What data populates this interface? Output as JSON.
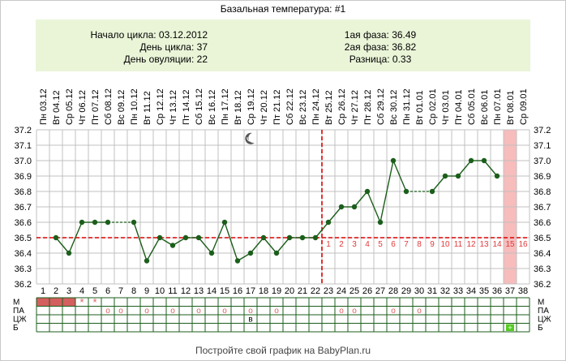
{
  "title": "Базальная температура: #1",
  "info": {
    "cycle_start": "Начало цикла: 03.12.2012",
    "cycle_day": "День цикла: 37",
    "ovulation_day": "День овуляции: 22",
    "phase1": "1ая фаза: 36.49",
    "phase2": "2ая фаза: 36.82",
    "difference": "Разница: 0.33"
  },
  "footer": "Постройте свой график на BabyPlan.ru",
  "colors": {
    "line": "#1b5e1b",
    "coverline": "#dd0000",
    "period": "#d45f5f",
    "today": "#f7bcbc",
    "grid": "#c0c0c0",
    "info_bg": "#eaf5d8",
    "luteal_text": "#e03b3b",
    "marker": "#e06060",
    "positive": "#55cc22"
  },
  "chart_data": {
    "type": "line",
    "title": "Базальная температура: #1",
    "xlabel": "",
    "ylabel": "",
    "ylim": [
      36.2,
      37.2
    ],
    "yticks": [
      "36.2",
      "36.3",
      "36.4",
      "36.5",
      "36.6",
      "36.7",
      "36.8",
      "36.9",
      "37.0",
      "37.1",
      "37.2"
    ],
    "days": [
      "1",
      "2",
      "3",
      "4",
      "5",
      "6",
      "7",
      "8",
      "9",
      "10",
      "11",
      "12",
      "13",
      "14",
      "15",
      "16",
      "17",
      "18",
      "19",
      "20",
      "21",
      "22",
      "23",
      "24",
      "25",
      "26",
      "27",
      "28",
      "29",
      "30",
      "31",
      "32",
      "33",
      "34",
      "35",
      "36",
      "37",
      "38"
    ],
    "dates": [
      "Пн 03.12",
      "Вт 04.12",
      "Ср 05.12",
      "Чт 06.12",
      "Пт 07.12",
      "Сб 08.12",
      "Вс 09.12",
      "Пн 10.12",
      "Вт 11.12",
      "Ср 12.12",
      "Чт 13.12",
      "Пт 14.12",
      "Сб 15.12",
      "Вс 16.12",
      "Пн 17.12",
      "Вт 18.12",
      "Ср 19.12",
      "Чт 20.12",
      "Пт 21.12",
      "Сб 22.12",
      "Вс 23.12",
      "Пн 24.12",
      "Вт 25.12",
      "Ср 26.12",
      "Чт 27.12",
      "Пт 28.12",
      "Сб 29.12",
      "Вс 30.12",
      "Пн 31.12",
      "Вт 01.01",
      "Ср 02.01",
      "Чт 03.01",
      "Пт 04.01",
      "Сб 05.01",
      "Вс 06.01",
      "Пн 07.01",
      "Вт 08.01",
      "Ср 09.01"
    ],
    "values": [
      null,
      36.5,
      36.4,
      36.6,
      36.6,
      36.6,
      null,
      36.6,
      36.35,
      36.5,
      36.45,
      36.5,
      36.5,
      36.4,
      36.6,
      36.35,
      36.4,
      36.5,
      36.4,
      36.5,
      36.5,
      36.5,
      36.6,
      36.7,
      36.7,
      36.8,
      36.6,
      37.0,
      36.8,
      null,
      36.8,
      36.9,
      36.9,
      37.0,
      37.0,
      36.9,
      null,
      null
    ],
    "coverline": 36.5,
    "ovulation_day": 22,
    "today_day": 37,
    "luteal_labels": [
      "1",
      "2",
      "3",
      "4",
      "5",
      "6",
      "7",
      "8",
      "9",
      "10",
      "11",
      "12",
      "13",
      "14",
      "15",
      "16"
    ],
    "moon_day": 17
  },
  "rows": {
    "labels": [
      "М",
      "ПА",
      "ЦЖ",
      "Б"
    ],
    "m_period_days": [
      1,
      2,
      3
    ],
    "m_star_days": [
      4,
      5
    ],
    "m_star_symbol": "*",
    "pa_days": [
      6,
      7,
      9,
      11,
      13,
      15,
      17,
      19,
      24,
      25,
      28,
      30
    ],
    "pa_symbol": "o",
    "czh_marks": [
      {
        "day": 17,
        "text": "в"
      }
    ],
    "b_positive_day": 37,
    "b_positive_symbol": "+"
  }
}
